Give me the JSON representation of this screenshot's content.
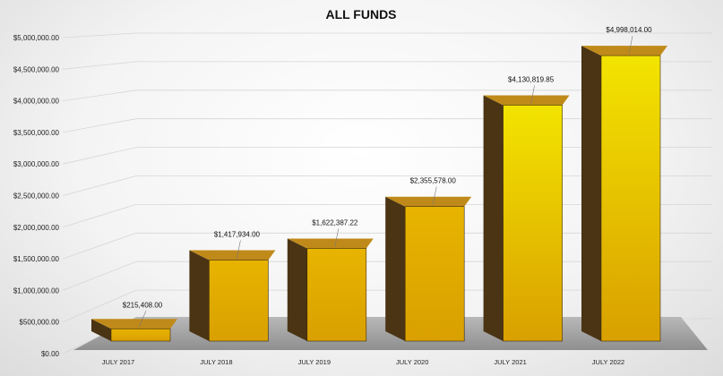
{
  "chart_data": {
    "type": "bar",
    "title": "ALL FUNDS",
    "categories": [
      "JULY 2017",
      "JULY 2018",
      "JULY 2019",
      "JULY 2020",
      "JULY 2021",
      "JULY 2022"
    ],
    "values": [
      215408.0,
      1417934.0,
      1622387.22,
      2355578.0,
      4130819.85,
      4998014.0
    ],
    "data_labels": [
      "$215,408.00",
      "$1,417,934.00",
      "$1,622,387.22",
      "$2,355,578.00",
      "$4,130,819.85",
      "$4,998,014.00"
    ],
    "y_ticks": [
      "$0.00",
      "$500,000.00",
      "$1,000,000.00",
      "$1,500,000.00",
      "$2,000,000.00",
      "$2,500,000.00",
      "$3,000,000.00",
      "$3,500,000.00",
      "$4,000,000.00",
      "$4,500,000.00",
      "$5,000,000.00"
    ],
    "ylim": [
      0,
      5000000
    ],
    "grid": true,
    "legend": "none",
    "style": "3d-column",
    "colors": {
      "bar_front_low": "#d9a000",
      "bar_front_high": "#f3e400",
      "bar_top": "#c08a1a",
      "bar_side": "#4a3414",
      "floor": "#a9a9a9",
      "grid": "#d6d6d6"
    }
  }
}
